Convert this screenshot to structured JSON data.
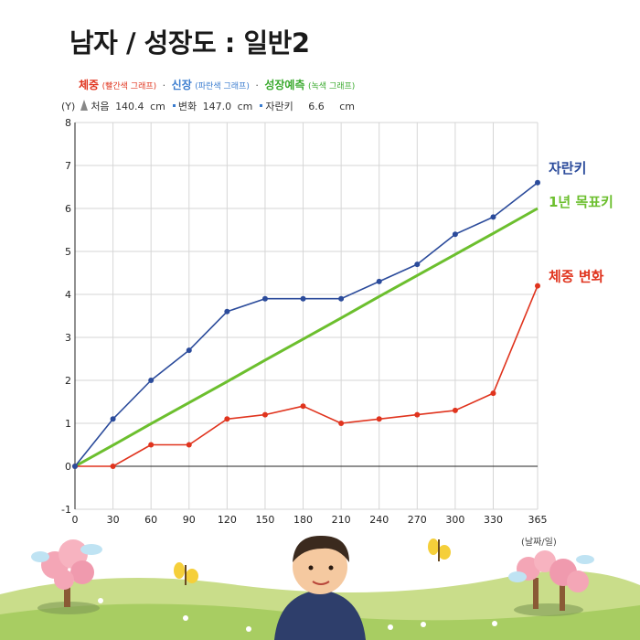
{
  "title": "남자 / 성장도 : 일반2",
  "legend": {
    "weight_label": "체중",
    "weight_note": "(빨간색 그래프)",
    "height_label": "신장",
    "height_note": "(파란색 그래프)",
    "prediction_label": "성장예측",
    "prediction_note": "(녹색 그래프)",
    "separator": "·"
  },
  "info": {
    "y_unit": "(Y)",
    "first_label": "처음",
    "first_value": "140.4",
    "first_unit": "cm",
    "change_label": "변화",
    "change_value": "147.0",
    "change_unit": "cm",
    "growth_label": "자란키",
    "growth_value": "6.6",
    "growth_unit": "cm"
  },
  "x_unit_label": "(날짜/일)",
  "chart_data": {
    "type": "line",
    "x": [
      0,
      30,
      60,
      90,
      120,
      150,
      180,
      210,
      240,
      270,
      300,
      330,
      365
    ],
    "x_ticks": [
      "0",
      "30",
      "60",
      "90",
      "120",
      "150",
      "180",
      "210",
      "240",
      "270",
      "300",
      "330",
      "365"
    ],
    "y_ticks": [
      "-1",
      "0",
      "1",
      "2",
      "3",
      "4",
      "5",
      "6",
      "7",
      "8"
    ],
    "xlim": [
      0,
      365
    ],
    "ylim": [
      -1,
      8
    ],
    "grid": true,
    "series": [
      {
        "name": "자란키",
        "color": "#2b4b9b",
        "markers": true,
        "values": [
          0,
          1.1,
          2.0,
          2.7,
          3.6,
          3.9,
          3.9,
          3.9,
          4.3,
          4.7,
          5.4,
          5.8,
          6.6
        ]
      },
      {
        "name": "1년 목표키",
        "color": "#6cbf2e",
        "markers": false,
        "values": [
          0,
          0.49,
          0.99,
          1.48,
          1.97,
          2.47,
          2.96,
          3.45,
          3.95,
          4.44,
          4.93,
          5.42,
          6.0
        ]
      },
      {
        "name": "체중 변화",
        "color": "#e0341e",
        "markers": true,
        "values": [
          0,
          0,
          0.5,
          0.5,
          1.1,
          1.2,
          1.4,
          1.0,
          1.1,
          1.2,
          1.3,
          1.7,
          4.2
        ]
      }
    ]
  }
}
